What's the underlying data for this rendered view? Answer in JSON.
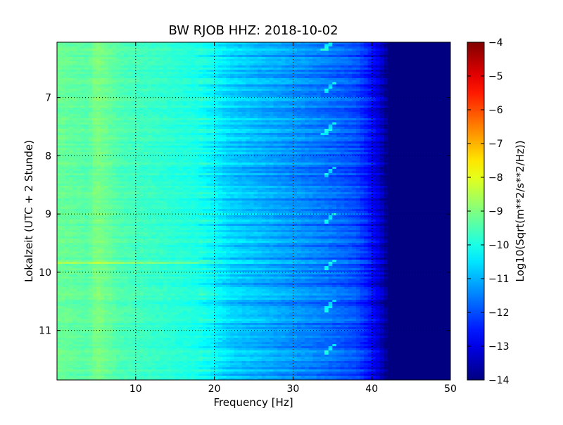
{
  "chart_data": {
    "type": "heatmap",
    "title": "BW RJOB HHZ: 2018-10-02",
    "xlabel": "Frequency [Hz]",
    "ylabel": "Lokalzeit (UTC + 2 Stunde)",
    "xlim": [
      0,
      50
    ],
    "ylim": [
      11.85,
      6.05
    ],
    "y_inverted": true,
    "x_ticks": [
      10,
      20,
      30,
      40,
      50
    ],
    "y_ticks": [
      7,
      8,
      9,
      10,
      11
    ],
    "grid": true,
    "colormap": "jet",
    "colorbar": {
      "label": "Log10(Sqrt(m**2/s**2/Hz))",
      "range": [
        -14,
        -4
      ],
      "ticks": [
        -4,
        -5,
        -6,
        -7,
        -8,
        -9,
        -10,
        -11,
        -12,
        -13,
        -14
      ]
    },
    "spectral_profile": {
      "frequency_hz": [
        0,
        2,
        4,
        5,
        8,
        10,
        14,
        18,
        20,
        22,
        26,
        30,
        34,
        38,
        39.5,
        41,
        42,
        50
      ],
      "level": [
        -9.2,
        -9.3,
        -9.4,
        -9.0,
        -9.5,
        -9.6,
        -9.8,
        -10.0,
        -10.3,
        -10.7,
        -11.0,
        -11.3,
        -11.6,
        -12.0,
        -12.5,
        -13.2,
        -14.0,
        -14.0
      ]
    },
    "annotations_in_data": [
      {
        "time": 9.84,
        "from_hz": 0,
        "to_hz": 42,
        "level_offset": 0.8,
        "note": "broadband line"
      },
      {
        "freq_hz": 5.0,
        "note": "narrow line"
      },
      {
        "freq_hz": 34.5,
        "times": [
          6.1,
          6.85,
          7.55,
          8.3,
          9.1,
          9.9,
          10.6,
          11.35
        ],
        "note": "periodic sweeps"
      }
    ]
  }
}
